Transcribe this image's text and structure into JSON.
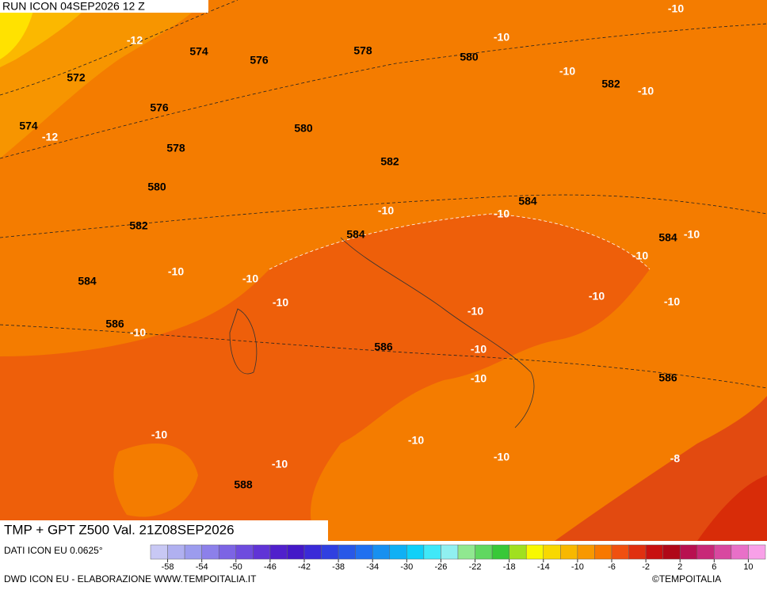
{
  "header": {
    "run": "RUN ICON 04SEP2026 12 Z"
  },
  "map": {
    "title": "TMP + GPT Z500 Val. 21Z08SEP2026",
    "geopotential_labels": [
      574,
      576,
      578,
      580,
      582,
      572,
      576,
      574,
      578,
      580,
      582,
      580,
      582,
      584,
      584,
      584,
      584,
      586,
      586,
      586,
      588
    ],
    "temperature_labels": [
      -10,
      -12,
      -10,
      -10,
      -10,
      -12,
      -10,
      -10,
      -10,
      -10,
      -10,
      -10,
      -10,
      -10,
      -10,
      -10,
      -10,
      -10,
      -10,
      -10,
      -10,
      -10,
      -10,
      -8
    ]
  },
  "colorbar": {
    "source": "DATI ICON EU 0.0625°",
    "ticks": [
      -58,
      -54,
      -50,
      -46,
      -42,
      -38,
      -34,
      -30,
      -26,
      -22,
      -18,
      -14,
      -10,
      -6,
      -2,
      2,
      6,
      10
    ],
    "colors": [
      "#c8c8f4",
      "#b0b0f0",
      "#9c9cee",
      "#8c80ea",
      "#7c64e4",
      "#6e4cde",
      "#6034d6",
      "#5020cc",
      "#4418c8",
      "#3a2ad8",
      "#3040e0",
      "#2858e8",
      "#2070f0",
      "#1890f0",
      "#10b0f4",
      "#10d0f8",
      "#40e8f8",
      "#90f0f0",
      "#90e890",
      "#60d860",
      "#38c838",
      "#a0e020",
      "#f8f800",
      "#f8d800",
      "#f8b800",
      "#f89800",
      "#f87800",
      "#f05010",
      "#e03010",
      "#c81010",
      "#b00818",
      "#b81050",
      "#c82878",
      "#d848a0",
      "#e870c8",
      "#f8a0e8"
    ]
  },
  "footer": {
    "credit": "DWD ICON EU - ELABORAZIONE WWW.TEMPOITALIA.IT",
    "copyright": "©TEMPOITALIA"
  }
}
